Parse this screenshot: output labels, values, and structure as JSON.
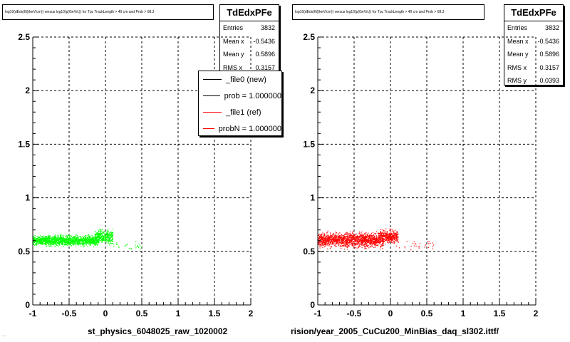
{
  "footer_stamp": "...",
  "legend": [
    {
      "label": "_file0 (new)",
      "color": "#000000"
    },
    {
      "label": "prob = 1.000000",
      "color": "#000000"
    },
    {
      "label": "_file1 (ref)",
      "color": "#ff0000"
    },
    {
      "label": "probN = 1.000000",
      "color": "#ff0000"
    }
  ],
  "panels": [
    {
      "title": "log10(dEdx(fit)(keV/cm)) versus log10(p(GeV/c)) for Tpc TrackLength > 40 cm and Prob > 68.3",
      "x_title": "st_physics_6048025_raw_1020002",
      "stats": {
        "name": "TdEdxPFe",
        "rows": [
          {
            "label": "Entries",
            "value": "3832"
          },
          {
            "label": "Mean x",
            "value": "-0.5436"
          },
          {
            "label": "Mean y",
            "value": "0.5896"
          },
          {
            "label": "RMS x",
            "value": "0.3157"
          }
        ]
      },
      "marker_color": "#00ff00"
    },
    {
      "title": "log10(dEdx(fit)(keV/cm)) versus log10(p(GeV/c)) for Tpc TrackLength > 40 cm and Prob > 68.3",
      "x_title": "rision/year_2005_CuCu200_MinBias_daq_sl302.ittf/",
      "stats": {
        "name": "TdEdxPFe",
        "rows": [
          {
            "label": "Entries",
            "value": "3832"
          },
          {
            "label": "Mean x",
            "value": "-0.5436"
          },
          {
            "label": "Mean y",
            "value": "0.5896"
          },
          {
            "label": "RMS x",
            "value": "0.3157"
          },
          {
            "label": "RMS y",
            "value": "0.0393"
          }
        ]
      },
      "marker_color": "#ff0000"
    }
  ],
  "chart_data": [
    {
      "type": "scatter",
      "title": "",
      "xlabel": "st_physics_6048025_raw_1020002",
      "ylabel": "",
      "xlim": [
        -1,
        2
      ],
      "ylim": [
        0,
        2.5
      ],
      "xticks": [
        "-1",
        "-0.5",
        "0",
        "0.5",
        "1",
        "1.5",
        "2"
      ],
      "yticks": [
        "0",
        "0.5",
        "1",
        "1.5",
        "2",
        "2.5"
      ],
      "grid": true,
      "series": [
        {
          "name": "",
          "color": "#00ff00",
          "clusters": [
            {
              "x": [
                -1.0,
                -0.1
              ],
              "y": [
                0.54,
                0.67
              ],
              "n": 1500
            },
            {
              "x": [
                -0.15,
                0.1
              ],
              "y": [
                0.55,
                0.73
              ],
              "n": 350
            },
            {
              "x": [
                0.1,
                0.5
              ],
              "y": [
                0.5,
                0.6
              ],
              "n": 25
            }
          ]
        }
      ]
    },
    {
      "type": "scatter",
      "title": "",
      "xlabel": "rision/year_2005_CuCu200_MinBias_daq_sl302.ittf/",
      "ylabel": "",
      "xlim": [
        -1,
        2
      ],
      "ylim": [
        0,
        2.5
      ],
      "xticks": [
        "-1",
        "-0.5",
        "0",
        "0.5",
        "1",
        "1.5",
        "2"
      ],
      "yticks": [
        "0",
        "0.5",
        "1",
        "1.5",
        "2",
        "2.5"
      ],
      "grid": true,
      "series": [
        {
          "name": "",
          "color": "#ff0000",
          "clusters": [
            {
              "x": [
                -1.0,
                -0.1
              ],
              "y": [
                0.52,
                0.7
              ],
              "n": 1500
            },
            {
              "x": [
                -0.15,
                0.1
              ],
              "y": [
                0.55,
                0.73
              ],
              "n": 350
            },
            {
              "x": [
                0.1,
                0.6
              ],
              "y": [
                0.5,
                0.62
              ],
              "n": 30
            }
          ]
        }
      ]
    }
  ]
}
